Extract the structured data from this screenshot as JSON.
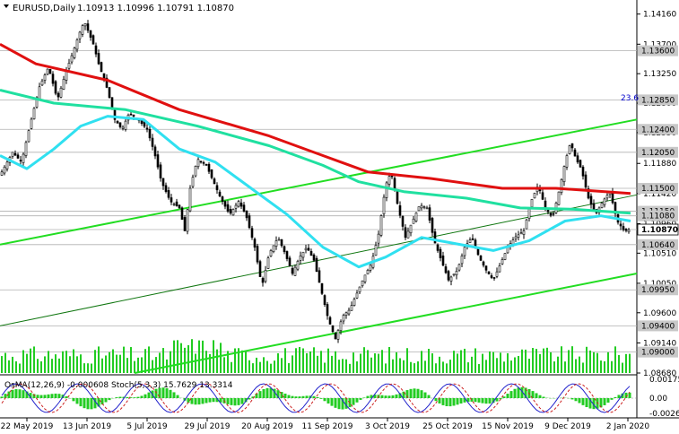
{
  "chart_data": {
    "type": "candlestick",
    "title": "EURUSD,Daily",
    "ohlc_label": "1.10913 1.10996 1.10791 1.10870",
    "price_ticks": [
      "1.14160",
      "1.13700",
      "1.13250",
      "1.12800",
      "1.12350",
      "1.11880",
      "1.11420",
      "1.10960",
      "1.10510",
      "1.10050",
      "1.09600",
      "1.09140",
      "1.08680"
    ],
    "price_range": [
      1.0868,
      1.1432
    ],
    "level_tags": [
      {
        "value": 1.136,
        "text": "1.13600"
      },
      {
        "value": 1.1285,
        "text": "1.12850"
      },
      {
        "value": 1.124,
        "text": "1.12400"
      },
      {
        "value": 1.1205,
        "text": "1.12050"
      },
      {
        "value": 1.115,
        "text": "1.11500"
      },
      {
        "value": 1.1115,
        "text": "1.11150"
      },
      {
        "value": 1.1108,
        "text": "1.11080"
      },
      {
        "value": 1.1087,
        "text": "1.10870",
        "current": true
      },
      {
        "value": 1.1064,
        "text": "1.10640"
      },
      {
        "value": 1.0995,
        "text": "1.09950"
      },
      {
        "value": 1.094,
        "text": "1.09400"
      },
      {
        "value": 1.09,
        "text": "1.09000"
      }
    ],
    "fib_label": "23.6",
    "date_ticks": [
      "22 May 2019",
      "13 Jun 2019",
      "5 Jul 2019",
      "29 Jul 2019",
      "20 Aug 2019",
      "11 Sep 2019",
      "3 Oct 2019",
      "25 Oct 2019",
      "15 Nov 2019",
      "9 Dec 2019",
      "2 Jan 2020"
    ],
    "price_path": [
      [
        0,
        1.117
      ],
      [
        14,
        1.1205
      ],
      [
        24,
        1.119
      ],
      [
        34,
        1.125
      ],
      [
        44,
        1.1305
      ],
      [
        54,
        1.1335
      ],
      [
        64,
        1.1285
      ],
      [
        74,
        1.133
      ],
      [
        82,
        1.136
      ],
      [
        88,
        1.1385
      ],
      [
        94,
        1.1405
      ],
      [
        104,
        1.137
      ],
      [
        110,
        1.134
      ],
      [
        120,
        1.13
      ],
      [
        128,
        1.1255
      ],
      [
        136,
        1.124
      ],
      [
        144,
        1.1265
      ],
      [
        154,
        1.1255
      ],
      [
        164,
        1.124
      ],
      [
        172,
        1.1205
      ],
      [
        180,
        1.116
      ],
      [
        190,
        1.113
      ],
      [
        200,
        1.112
      ],
      [
        206,
        1.1085
      ],
      [
        212,
        1.115
      ],
      [
        220,
        1.1195
      ],
      [
        230,
        1.1185
      ],
      [
        238,
        1.116
      ],
      [
        246,
        1.1135
      ],
      [
        256,
        1.111
      ],
      [
        266,
        1.113
      ],
      [
        274,
        1.111
      ],
      [
        284,
        1.106
      ],
      [
        292,
        1.1
      ],
      [
        300,
        1.105
      ],
      [
        310,
        1.1075
      ],
      [
        318,
        1.105
      ],
      [
        326,
        1.102
      ],
      [
        334,
        1.1045
      ],
      [
        342,
        1.106
      ],
      [
        350,
        1.104
      ],
      [
        358,
        1.0995
      ],
      [
        366,
        1.095
      ],
      [
        374,
        1.092
      ],
      [
        382,
        1.0955
      ],
      [
        390,
        1.0965
      ],
      [
        398,
        1.099
      ],
      [
        406,
        1.1015
      ],
      [
        414,
        1.1035
      ],
      [
        422,
        1.108
      ],
      [
        430,
        1.1155
      ],
      [
        436,
        1.1175
      ],
      [
        444,
        1.112
      ],
      [
        452,
        1.1075
      ],
      [
        460,
        1.11
      ],
      [
        468,
        1.1125
      ],
      [
        476,
        1.112
      ],
      [
        484,
        1.107
      ],
      [
        492,
        1.104
      ],
      [
        500,
        1.101
      ],
      [
        510,
        1.1025
      ],
      [
        518,
        1.106
      ],
      [
        526,
        1.1075
      ],
      [
        534,
        1.1045
      ],
      [
        542,
        1.1025
      ],
      [
        550,
        1.101
      ],
      [
        558,
        1.1035
      ],
      [
        566,
        1.106
      ],
      [
        574,
        1.1075
      ],
      [
        584,
        1.1085
      ],
      [
        592,
        1.113
      ],
      [
        600,
        1.1155
      ],
      [
        608,
        1.112
      ],
      [
        616,
        1.1105
      ],
      [
        624,
        1.115
      ],
      [
        630,
        1.119
      ],
      [
        636,
        1.122
      ],
      [
        642,
        1.1195
      ],
      [
        648,
        1.118
      ],
      [
        656,
        1.1135
      ],
      [
        664,
        1.111
      ],
      [
        672,
        1.113
      ],
      [
        680,
        1.1145
      ],
      [
        688,
        1.11
      ],
      [
        696,
        1.1085
      ],
      [
        703,
        1.1087
      ]
    ],
    "ma_200": [
      [
        0,
        1.137
      ],
      [
        40,
        1.134
      ],
      [
        120,
        1.1315
      ],
      [
        200,
        1.127
      ],
      [
        300,
        1.123
      ],
      [
        360,
        1.12
      ],
      [
        410,
        1.1175
      ],
      [
        480,
        1.1165
      ],
      [
        560,
        1.115
      ],
      [
        620,
        1.115
      ],
      [
        703,
        1.1142
      ]
    ],
    "ma_144": [
      [
        0,
        1.13
      ],
      [
        60,
        1.128
      ],
      [
        140,
        1.127
      ],
      [
        220,
        1.1245
      ],
      [
        300,
        1.1215
      ],
      [
        360,
        1.1185
      ],
      [
        400,
        1.116
      ],
      [
        450,
        1.1145
      ],
      [
        520,
        1.1135
      ],
      [
        580,
        1.112
      ],
      [
        640,
        1.1118
      ],
      [
        703,
        1.1112
      ]
    ],
    "ma_50": [
      [
        0,
        1.12
      ],
      [
        30,
        1.118
      ],
      [
        60,
        1.121
      ],
      [
        90,
        1.1245
      ],
      [
        120,
        1.126
      ],
      [
        160,
        1.1255
      ],
      [
        200,
        1.121
      ],
      [
        240,
        1.119
      ],
      [
        280,
        1.115
      ],
      [
        320,
        1.111
      ],
      [
        360,
        1.106
      ],
      [
        400,
        1.103
      ],
      [
        430,
        1.1045
      ],
      [
        470,
        1.1075
      ],
      [
        510,
        1.1065
      ],
      [
        550,
        1.1055
      ],
      [
        590,
        1.107
      ],
      [
        630,
        1.11
      ],
      [
        670,
        1.1108
      ],
      [
        703,
        1.11
      ]
    ],
    "channel_upper": [
      [
        0,
        1.1064
      ],
      [
        710,
        1.1255
      ]
    ],
    "channel_lower": [
      [
        150,
        1.0868
      ],
      [
        710,
        1.102
      ]
    ],
    "channel_mid": [
      [
        0,
        1.094
      ],
      [
        710,
        1.114
      ]
    ],
    "osma_label": "OsMA(12,26,9) -0.000608",
    "stoch_label": "Stoch(5,3,3) 15.7629 13.3314",
    "osc_ticks": [
      "0.001752",
      "0.00",
      "-0.002632"
    ]
  }
}
